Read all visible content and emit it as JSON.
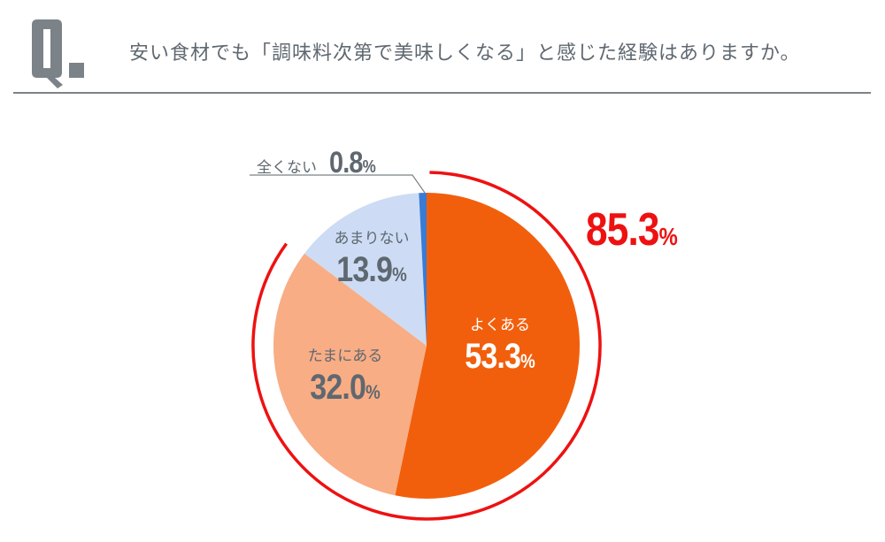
{
  "header": {
    "q_mark": "Q.",
    "question": "安い食材でも「調味料次第で美味しくなる」と感じた経験はありますか。"
  },
  "colors": {
    "text_gray": "#5f6870",
    "often": "#f25f0c",
    "sometimes": "#f8ad85",
    "rarely": "#cddcf4",
    "never": "#3a7bd5",
    "highlight_red": "#ee1111"
  },
  "chart_data": {
    "type": "pie",
    "title": "安い食材でも「調味料次第で美味しくなる」と感じた経験はありますか。",
    "categories": [
      "よくある",
      "たまにある",
      "あまりない",
      "全くない"
    ],
    "values": [
      53.3,
      32.0,
      13.9,
      0.8
    ],
    "unit": "%",
    "start_angle_deg": 0,
    "direction": "clockwise",
    "annotation": {
      "text": "85.3%",
      "covers": [
        "よくある",
        "たまにある"
      ],
      "style": "red arc around combined slices"
    }
  },
  "labels": {
    "often": {
      "name": "よくある",
      "value": "53.3",
      "pct": "%"
    },
    "sometimes": {
      "name": "たまにある",
      "value": "32.0",
      "pct": "%"
    },
    "rarely": {
      "name": "あまりない",
      "value": "13.9",
      "pct": "%"
    },
    "never": {
      "name": "全くない",
      "value": "0.8",
      "pct": "%"
    },
    "total": {
      "value": "85.3",
      "pct": "%"
    }
  }
}
